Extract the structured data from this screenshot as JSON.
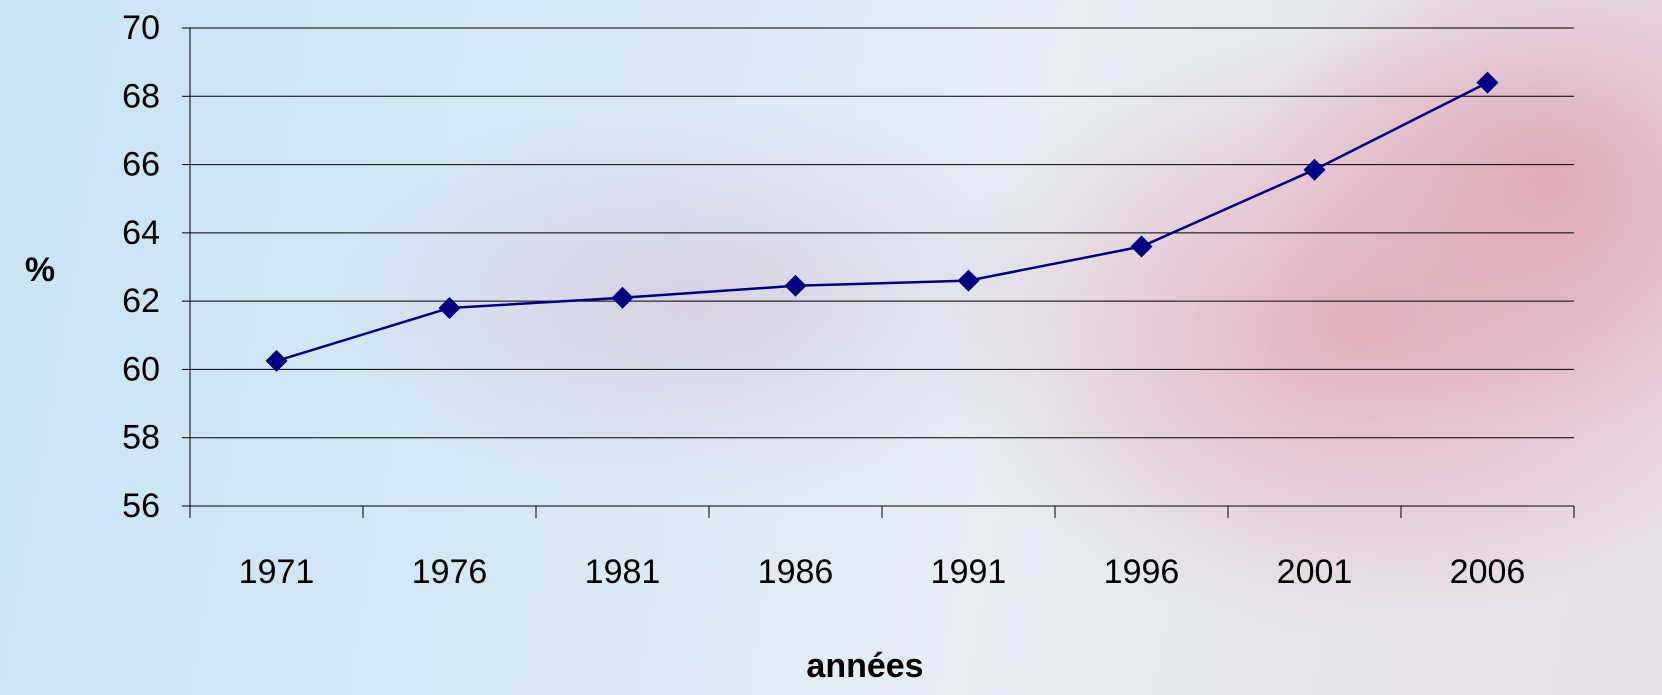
{
  "chart_data": {
    "type": "line",
    "x_label": "années",
    "y_label": "%",
    "categories": [
      "1971",
      "1976",
      "1981",
      "1986",
      "1991",
      "1996",
      "2001",
      "2006"
    ],
    "series": [
      {
        "color": "#000080",
        "values": [
          60.25,
          61.8,
          62.1,
          62.45,
          62.6,
          63.6,
          65.85,
          68.4
        ]
      }
    ],
    "ylim": [
      56,
      70
    ],
    "yticks": [
      56,
      58,
      60,
      62,
      64,
      66,
      68,
      70
    ],
    "grid": true
  }
}
